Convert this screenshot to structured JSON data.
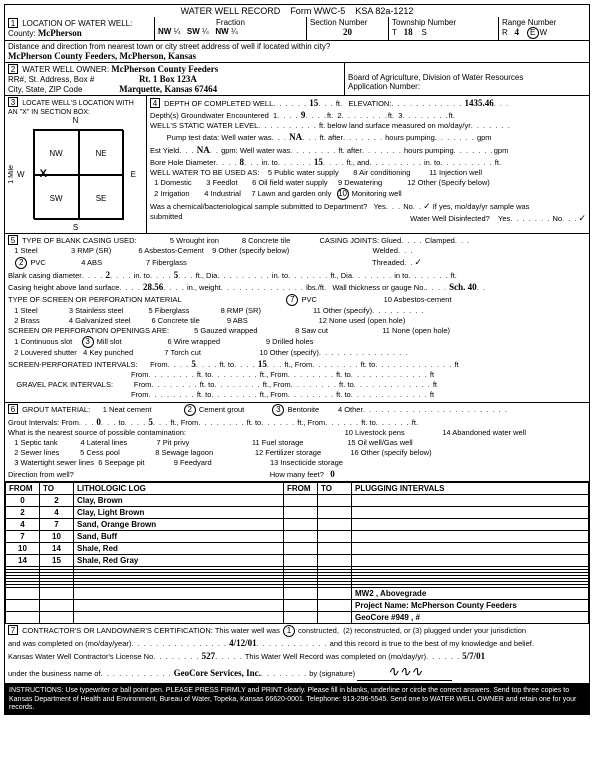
{
  "form": {
    "title": "WATER WELL RECORD",
    "form_no": "Form WWC-5",
    "ksa": "KSA 82a-1212"
  },
  "sec1": {
    "label": "LOCATION OF WATER WELL:",
    "county_lbl": "County:",
    "county": "McPherson",
    "fraction_lbl": "Fraction",
    "frac1a": "NW",
    "frac1b": "¼",
    "frac2a": "SW",
    "frac2b": "¼",
    "frac3a": "NW",
    "frac3b": "¼",
    "section_lbl": "Section Number",
    "section": "20",
    "township_lbl": "Township Number",
    "township_t": "T",
    "township": "18",
    "township_s": "S",
    "range_lbl": "Range Number",
    "range_r": "R",
    "range": "4",
    "range_ew": "E/W",
    "distance_lbl": "Distance and direction from nearest town or city street address of well if located within city?",
    "distance": "McPherson County Feeders, McPherson, Kansas"
  },
  "sec2": {
    "label": "WATER WELL OWNER:",
    "owner": "McPherson County Feeders",
    "addr_lbl": "RR#, St. Address, Box #",
    "addr": "Rt. 1 Box 123A",
    "city_lbl": "City, State, ZIP Code",
    "city": "Marquette, Kansas  67464",
    "board": "Board of Agriculture, Division of Water Resources",
    "appno": "Application Number:"
  },
  "sec3": {
    "label": "LOCATE WELL'S LOCATION WITH AN \"X\" IN SECTION BOX:",
    "n": "N",
    "s": "S",
    "e": "E",
    "w": "W",
    "nw": "NW",
    "ne": "NE",
    "sw": "SW",
    "se": "SE",
    "mile": "1 Mile"
  },
  "sec4": {
    "label": "DEPTH OF COMPLETED WELL",
    "depth": "15",
    "ft": "ft.",
    "elev_lbl": "ELEVATION:",
    "elev": "1435.46",
    "gw_lbl": "Depth(s) Groundwater Encountered",
    "gw1": "1",
    "gw1v": "9",
    "gw2": "2",
    "gw3": "3",
    "static_lbl": "WELL'S STATIC WATER LEVEL",
    "static_unit": "ft. below land surface measured on mo/day/yr",
    "pump_lbl": "Pump test data:  Well water was",
    "pump_na": "NA",
    "pump_after": "ft. after",
    "pump_hours": "hours pumping",
    "pump_gpm": "gpm",
    "est_lbl": "Est Yield",
    "est_na": "NA",
    "est_gpm": "gpm:  Well water was",
    "bore_lbl": "Bore Hole Diameter",
    "bore1": "8",
    "bore_into": "in. to",
    "bore2": "15",
    "bore_ftand": "ft., and",
    "bore_in": "in. to",
    "bore_ft": "ft.",
    "use_lbl": "WELL WATER TO BE USED AS:",
    "u1": "1  Domestic",
    "u2": "2  Irrigation",
    "u3": "3  Feedlot",
    "u4": "4  Industrial",
    "u5": "5  Public water supply",
    "u6": "6  Oil field water supply",
    "u7": "7  Lawn and garden only",
    "u8": "8  Air conditioning",
    "u9": "9  Dewatering",
    "u10": "10",
    "u10b": "Monitoring well",
    "u11": "11  Injection well",
    "u12": "12  Other (Specify below)",
    "chem_lbl": "Was a chemical/bacteriological sample submitted to Department?",
    "yes": "Yes",
    "no": "No",
    "ifyes": "If yes, mo/day/yr sample was",
    "subm": "submitted",
    "disinf": "Water Well Disinfected?",
    "dyes": "Yes",
    "dno": "No"
  },
  "sec5": {
    "label": "TYPE OF BLANK CASING USED:",
    "c1": "1  Steel",
    "c2": "2",
    "c2b": "PVC",
    "c3": "3  RMP (SR)",
    "c4": "4  ABS",
    "c5": "5  Wrought iron",
    "c6": "6  Asbestos-Cement",
    "c7": "7  Fiberglass",
    "c8": "8  Concrete tile",
    "c9": "9  Other (specify below)",
    "joints": "CASING JOINTS:",
    "jglued": "Glued",
    "jclamped": "Clamped",
    "jwelded": "Welded",
    "jthreaded": "Threaded",
    "bcd_lbl": "Blank casing diameter",
    "bcd1": "2",
    "bcd_into": "in. to",
    "bcd2": "5",
    "bcd_ft": "ft., Dia",
    "bcd_in2": "in. to",
    "bcd_ft2": "ft., Dia",
    "bcd_in3": "in to",
    "bcd_ft3": "ft.",
    "ch_lbl": "Casing height above land surface",
    "ch": "28.56",
    "ch_in": "in., weight",
    "ch_lbs": "lbs./ft.",
    "ch_wall": "Wall thickness or gauge No.",
    "ch_sch": "Sch. 40",
    "screen_lbl": "TYPE OF SCREEN OR PERFORATION MATERIAL",
    "s1": "1  Steel",
    "s2": "2  Brass",
    "s3": "3  Stainless steel",
    "s4": "4  Galvanized steel",
    "s5": "5  Fiberglass",
    "s6": "6  Concrete tile",
    "s7": "7",
    "s7b": "PVC",
    "s8": "8  RMP (SR)",
    "s9": "9  ABS",
    "s10": "10  Asbestos-cement",
    "s11": "11  Other (specify)",
    "s12": "12  None used (open hole)",
    "open_lbl": "SCREEN OR PERFORATION OPENINGS ARE:",
    "o1": "1  Continuous slot",
    "o2": "2  Louvered shutter",
    "o3": "3",
    "o3b": "Mill slot",
    "o4": "4  Key punched",
    "o5": "5  Gauzed wrapped",
    "o6": "6  Wire wrapped",
    "o7": "7  Torch cut",
    "o8": "8  Saw cut",
    "o9": "9  Drilled holes",
    "o10": "10  Other (specify)",
    "o11": "11  None (open hole)",
    "spi_lbl": "SCREEN-PERFORATED INTERVALS:",
    "from": "From",
    "to": "to",
    "ft": "ft.",
    "ftR": "ft",
    "v5": "5",
    "v15": "15",
    "gpi_lbl": "GRAVEL PACK INTERVALS:"
  },
  "sec6": {
    "label": "GROUT MATERIAL:",
    "g1": "1  Neat cement",
    "g2": "2",
    "g2b": "Cement grout",
    "g3": "3",
    "g3b": "Bentonite",
    "g4": "4  Other",
    "gi_lbl": "Grout Intervals:   From",
    "gi0": "0",
    "gito": "to",
    "gi5": "5",
    "ft": "ft., From",
    "ftto": "ft. to",
    "ft2": "ft., From",
    "ft3": "ft. to",
    "ft4": "ft.",
    "contam_lbl": "What is the nearest source of possible contamination:",
    "p1": "1  Septic tank",
    "p2": "2  Sewer lines",
    "p3": "3  Watertight sewer lines",
    "p4": "4  Lateral lines",
    "p5": "5  Cess pool",
    "p6": "6  Seepage pit",
    "p7": "7  Pit privy",
    "p8": "8  Sewage lagoon",
    "p9": "9  Feedyard",
    "p10": "10  Livestock pens",
    "p11": "11  Fuel storage",
    "p12": "12  Fertilizer storage",
    "p13": "13  Insecticide storage",
    "p14": "14  Abandoned water well",
    "p15": "15  Oil well/Gas well",
    "p16": "16  Other (specify below)",
    "dir_lbl": "Direction from well?",
    "howmany": "How many feet?",
    "howmany_v": "0"
  },
  "litho": {
    "h_from": "FROM",
    "h_to": "TO",
    "h_log": "LITHOLOGIC LOG",
    "h_plug": "PLUGGING INTERVALS",
    "rows": [
      {
        "f": "0",
        "t": "2",
        "d": "Clay, Brown"
      },
      {
        "f": "2",
        "t": "4",
        "d": "Clay, Light Brown"
      },
      {
        "f": "4",
        "t": "7",
        "d": "Sand, Orange Brown"
      },
      {
        "f": "7",
        "t": "10",
        "d": "Sand, Buff"
      },
      {
        "f": "10",
        "t": "14",
        "d": "Shale, Red"
      },
      {
        "f": "14",
        "t": "15",
        "d": "Shale, Red Gray"
      }
    ],
    "meta1": "MW2 , Abovegrade",
    "meta2": "Project Name: McPherson County Feeders",
    "meta3": "GeoCore #949 , #"
  },
  "sec7": {
    "label": "CONTRACTOR'S OR LANDOWNER'S CERTIFICATION:  This water well was",
    "c1": "1",
    "c1b": "constructed,",
    "c2": "(2) reconstructed, or (3) plugged under your jurisdiction",
    "comp_lbl": "and was completed on (mo/day/year)",
    "comp": "4/12/01",
    "rec_lbl": "and this record is true to the best of my knowledge and belief.",
    "lic_lbl": "Kansas Water Well Contractor's License No",
    "lic": "527",
    "rec2_lbl": "This Water Well Record was completed on (mo/day/yr)",
    "rec2": "5/7/01",
    "bus_lbl": "under the business name of",
    "bus": "GeoCore Services, Inc.",
    "sig_lbl": "by (signature)"
  },
  "footer": "INSTRUCTIONS: Use typewriter or ball point pen. PLEASE PRESS FIRMLY and PRINT clearly. Please fill in blanks, underline or circle the correct answers. Send top three copies to Kansas Department of Health and Environment, Bureau of Water, Topeka, Kansas 66620-0001. Telephone: 913-296-5545. Send one to WATER WELL OWNER and retain one for your records.",
  "side": "OFFICE USE ONLY         E/W         SEC.         ¼         ¼         ¼"
}
